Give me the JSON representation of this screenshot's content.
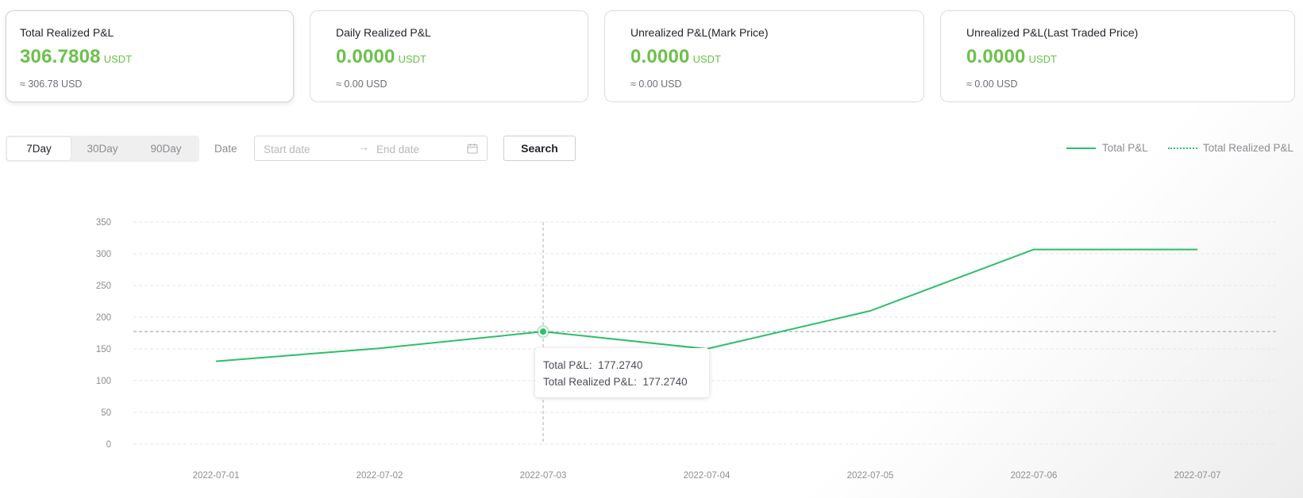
{
  "cards": [
    {
      "title": "Total Realized P&L",
      "value": "306.7808",
      "unit": "USDT",
      "sub": "≈ 306.78 USD"
    },
    {
      "title": "Daily Realized P&L",
      "value": "0.0000",
      "unit": "USDT",
      "sub": "≈ 0.00 USD"
    },
    {
      "title": "Unrealized P&L(Mark Price)",
      "value": "0.0000",
      "unit": "USDT",
      "sub": "≈ 0.00 USD"
    },
    {
      "title": "Unrealized P&L(Last Traded Price)",
      "value": "0.0000",
      "unit": "USDT",
      "sub": "≈ 0.00 USD"
    }
  ],
  "periods": {
    "p7": "7Day",
    "p30": "30Day",
    "p90": "90Day",
    "selected": "7Day"
  },
  "date_filter": {
    "label": "Date",
    "start_placeholder": "Start date",
    "end_placeholder": "End date",
    "arrow": "→"
  },
  "search_label": "Search",
  "colors": {
    "accent": "#6cc04a",
    "line": "#2dbf6a"
  },
  "chart_data": {
    "type": "line",
    "categories": [
      "2022-07-01",
      "2022-07-02",
      "2022-07-03",
      "2022-07-04",
      "2022-07-05",
      "2022-07-06",
      "2022-07-07"
    ],
    "series": [
      {
        "name": "Total P&L",
        "style": "solid",
        "values": [
          130.5,
          151.0,
          177.274,
          150.0,
          210.0,
          306.7808,
          306.7808
        ]
      },
      {
        "name": "Total Realized P&L",
        "style": "dotted",
        "values": [
          130.5,
          151.0,
          177.274,
          150.0,
          210.0,
          306.7808,
          306.7808
        ]
      }
    ],
    "y_ticks": [
      "0",
      "50",
      "100",
      "150",
      "200",
      "250",
      "300",
      "350"
    ],
    "ylim": [
      0,
      350
    ],
    "grid": "horizontal-dashed",
    "legend": "top-right",
    "hover": {
      "index": 2,
      "value": 177.274
    }
  },
  "tooltip": {
    "total_label": "Total P&L:",
    "total_value": "177.2740",
    "realized_label": "Total Realized P&L:",
    "realized_value": "177.2740"
  }
}
